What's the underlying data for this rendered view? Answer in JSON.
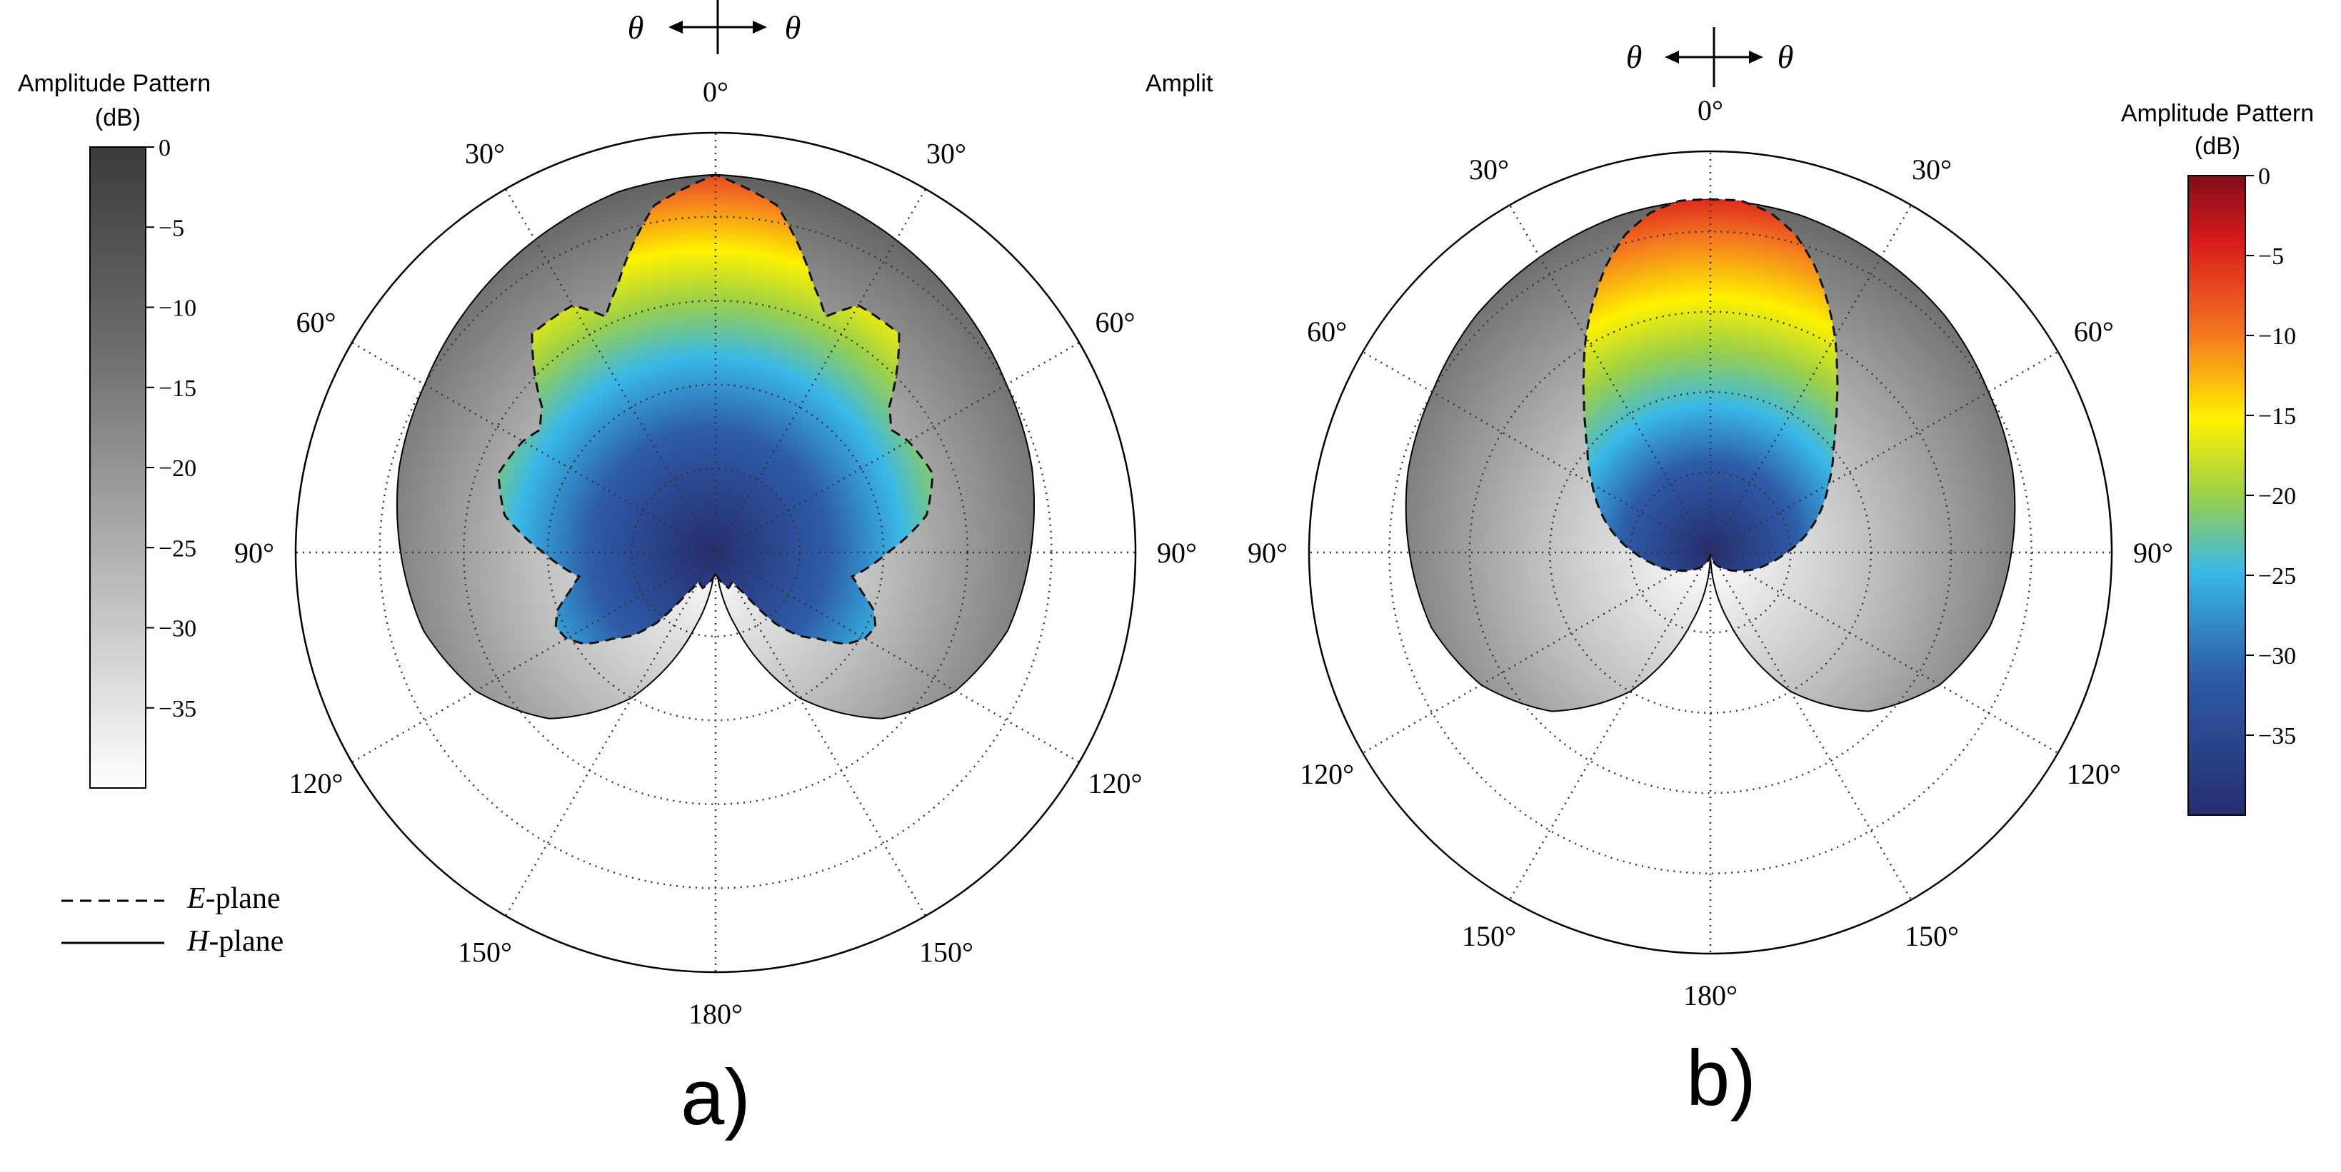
{
  "chart_data": [
    {
      "type": "polar",
      "panel_label": "a)",
      "angle_labels": [
        "0°",
        "30°",
        "60°",
        "90°",
        "120°",
        "150°",
        "180°",
        "150°",
        "120°",
        "90°",
        "60°",
        "30°"
      ],
      "angle_values_deg": [
        0,
        30,
        60,
        90,
        120,
        150,
        180,
        210,
        240,
        270,
        300,
        330
      ],
      "theta_indicator": {
        "left": "θ",
        "right": "θ"
      },
      "colorbar": {
        "title": "Amplitude Pattern",
        "unit": "(dB)",
        "colormap": "gray",
        "ticks": [
          "0",
          "−5",
          "−10",
          "−15",
          "−20",
          "−25",
          "−30",
          "−35"
        ],
        "tick_values": [
          0,
          -5,
          -10,
          -15,
          -20,
          -25,
          -30,
          -35
        ],
        "range": [
          -40,
          0
        ]
      },
      "clipped_label": "Amplit",
      "legend": [
        {
          "style": "dashed",
          "label_italic": "E",
          "label_rest": "-plane"
        },
        {
          "style": "solid",
          "label_italic": "H",
          "label_rest": "-plane"
        }
      ],
      "h_plane_pattern": {
        "angles_deg": [
          0,
          15,
          30,
          45,
          60,
          75,
          90,
          105,
          120,
          135,
          150,
          165,
          180
        ],
        "radius_fraction": [
          0.9,
          0.89,
          0.86,
          0.83,
          0.8,
          0.78,
          0.75,
          0.72,
          0.66,
          0.56,
          0.4,
          0.18,
          0.0
        ]
      },
      "e_plane_pattern": {
        "angles_deg": [
          0,
          10,
          20,
          25,
          30,
          40,
          50,
          55,
          60,
          70,
          80,
          90,
          100,
          105,
          110,
          115,
          120,
          125,
          130,
          135,
          140,
          145,
          150,
          160,
          170,
          180
        ],
        "radius_fraction": [
          0.9,
          0.84,
          0.68,
          0.62,
          0.68,
          0.68,
          0.54,
          0.51,
          0.53,
          0.55,
          0.51,
          0.41,
          0.33,
          0.36,
          0.4,
          0.42,
          0.41,
          0.38,
          0.32,
          0.28,
          0.22,
          0.12,
          0.08,
          0.09,
          0.07,
          0.05
        ]
      }
    },
    {
      "type": "polar",
      "panel_label": "b)",
      "angle_labels": [
        "0°",
        "30°",
        "60°",
        "90°",
        "120°",
        "150°",
        "180°",
        "150°",
        "120°",
        "90°",
        "60°",
        "30°"
      ],
      "angle_values_deg": [
        0,
        30,
        60,
        90,
        120,
        150,
        180,
        210,
        240,
        270,
        300,
        330
      ],
      "theta_indicator": {
        "left": "θ",
        "right": "θ"
      },
      "colorbar": {
        "title": "Amplitude Pattern",
        "unit": "(dB)",
        "colormap": "jet",
        "ticks": [
          "0",
          "−5",
          "−10",
          "−15",
          "−20",
          "−25",
          "−30",
          "−35"
        ],
        "tick_values": [
          0,
          -5,
          -10,
          -15,
          -20,
          -25,
          -30,
          -35
        ],
        "range": [
          -40,
          0
        ]
      },
      "h_plane_pattern": {
        "angles_deg": [
          0,
          15,
          30,
          45,
          60,
          75,
          90,
          105,
          120,
          135,
          150,
          165,
          180
        ],
        "radius_fraction": [
          0.88,
          0.87,
          0.85,
          0.83,
          0.8,
          0.78,
          0.75,
          0.72,
          0.66,
          0.56,
          0.4,
          0.18,
          0.0
        ]
      },
      "e_plane_pattern": {
        "angles_deg": [
          0,
          5,
          10,
          15,
          20,
          25,
          30,
          35,
          40,
          45,
          50,
          55,
          60,
          70,
          80,
          90,
          100,
          110,
          120,
          135,
          150,
          165,
          180
        ],
        "radius_fraction": [
          0.88,
          0.88,
          0.86,
          0.82,
          0.76,
          0.69,
          0.62,
          0.55,
          0.49,
          0.44,
          0.4,
          0.37,
          0.34,
          0.29,
          0.24,
          0.19,
          0.15,
          0.12,
          0.09,
          0.06,
          0.04,
          0.02,
          0.0
        ]
      }
    }
  ]
}
